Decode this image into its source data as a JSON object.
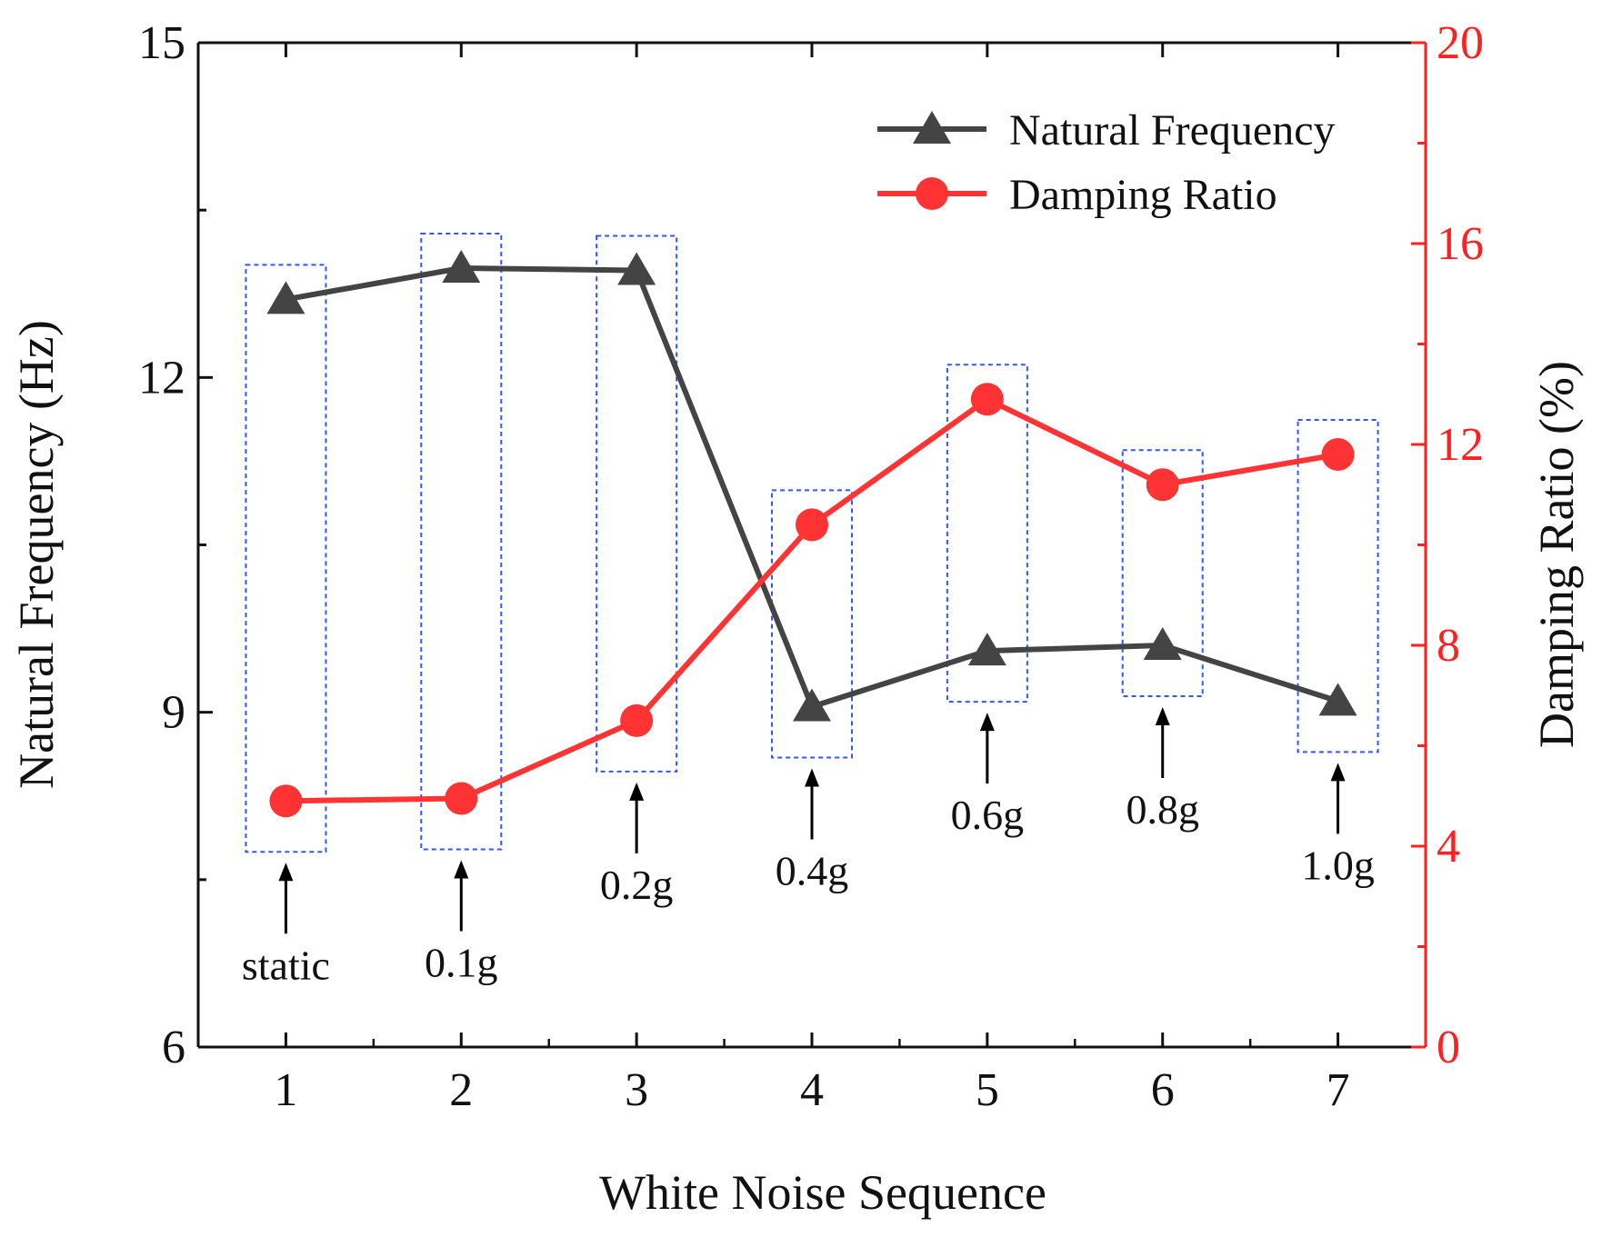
{
  "chart_data": {
    "type": "line",
    "xlabel": "White Noise Sequence",
    "ylabel_left": "Natural Frequency (Hz)",
    "ylabel_right": "Damping Ratio (%)",
    "x": [
      1,
      2,
      3,
      4,
      5,
      6,
      7
    ],
    "x_ticks": [
      "1",
      "2",
      "3",
      "4",
      "5",
      "6",
      "7"
    ],
    "xlim": [
      0.5,
      7.5
    ],
    "ylim_left": [
      6,
      15
    ],
    "ylim_right": [
      0,
      20
    ],
    "yticks_left": [
      "6",
      "9",
      "12",
      "15"
    ],
    "yticks_right": [
      "0",
      "4",
      "8",
      "12",
      "16",
      "20"
    ],
    "series": [
      {
        "name": "Natural Frequency",
        "axis": "left",
        "marker": "triangle",
        "color": "#444444",
        "values": [
          12.7,
          12.98,
          12.96,
          9.05,
          9.55,
          9.6,
          9.1
        ]
      },
      {
        "name": "Damping Ratio",
        "axis": "right",
        "marker": "circle",
        "color": "#ff3333",
        "values": [
          4.9,
          4.95,
          6.5,
          10.4,
          12.9,
          11.2,
          11.8
        ]
      }
    ],
    "annotations": [
      "static",
      "0.1g",
      "0.2g",
      "0.4g",
      "0.6g",
      "0.8g",
      "1.0g"
    ],
    "legend_position": "top-right",
    "highlight_box_color": "#3355ff",
    "left_axis_color": "#111111",
    "right_axis_color": "#ff2020"
  }
}
